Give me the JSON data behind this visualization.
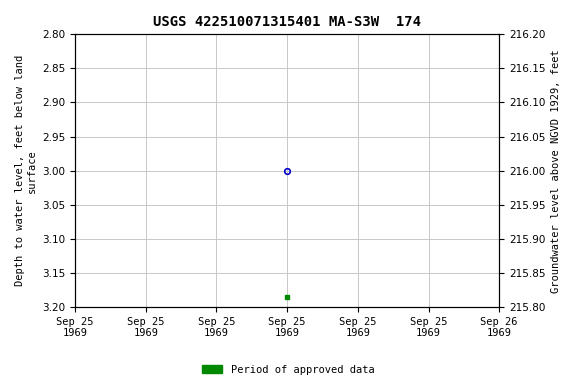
{
  "title": "USGS 422510071315401 MA-S3W  174",
  "ylabel_left": "Depth to water level, feet below land\nsurface",
  "ylabel_right": "Groundwater level above NGVD 1929, feet",
  "ylim_left": [
    2.8,
    3.2
  ],
  "ylim_right": [
    215.8,
    216.2
  ],
  "yticks_left": [
    2.8,
    2.85,
    2.9,
    2.95,
    3.0,
    3.05,
    3.1,
    3.15,
    3.2
  ],
  "yticks_right": [
    215.8,
    215.85,
    215.9,
    215.95,
    216.0,
    216.05,
    216.1,
    216.15,
    216.2
  ],
  "point_blue_x_hours": 12,
  "point_blue_y": 3.0,
  "point_green_x_hours": 12,
  "point_green_y": 3.185,
  "point_blue_color": "#0000cc",
  "point_green_color": "#008800",
  "background_color": "#ffffff",
  "grid_color": "#c8c8c8",
  "title_fontsize": 10,
  "tick_fontsize": 7.5,
  "label_fontsize": 7.5,
  "legend_label": "Period of approved data",
  "legend_color": "#008800",
  "xtick_hours": [
    0,
    4,
    8,
    12,
    16,
    20,
    24
  ],
  "xtick_labels_line1": [
    "Sep 25",
    "Sep 25",
    "Sep 25",
    "Sep 25",
    "Sep 25",
    "Sep 25",
    "Sep 26"
  ],
  "xtick_labels_line2": [
    "1969",
    "1969",
    "1969",
    "1969",
    "1969",
    "1969",
    "1969"
  ],
  "figwidth": 5.76,
  "figheight": 3.84,
  "dpi": 100
}
